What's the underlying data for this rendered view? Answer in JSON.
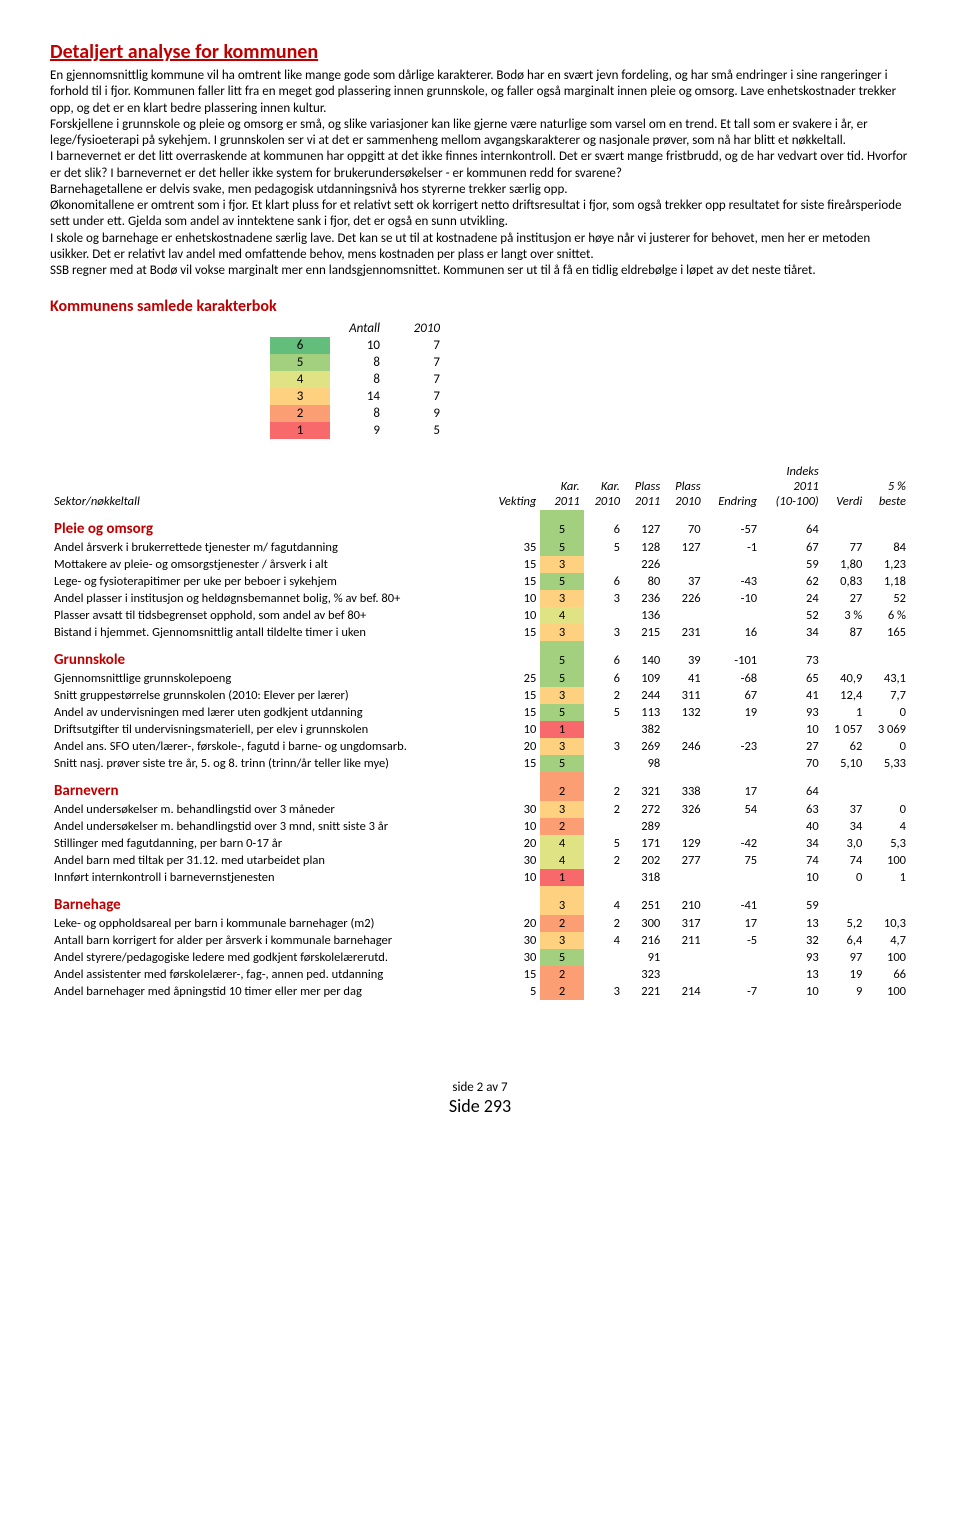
{
  "title": "Detaljert analyse for kommunen",
  "body": "En gjennomsnittlig kommune vil ha omtrent like mange gode som dårlige karakterer. Bodø har en svært jevn fordeling, og har små endringer i sine rangeringer i forhold til i fjor. Kommunen faller litt fra en meget god plassering innen grunnskole, og faller også marginalt innen pleie og omsorg. Lave enhetskostnader trekker opp, og det er en klart bedre plassering innen kultur.\nForskjellene i grunnskole og pleie og omsorg er små, og slike variasjoner kan like gjerne være naturlige som varsel om en trend. Et tall som er svakere i år, er lege/fysioeterapi på sykehjem. I grunnskolen ser vi at det er sammenheng mellom avgangskarakterer og nasjonale prøver, som nå har blitt et nøkkeltall.\nI barnevernet er det litt overraskende at kommunen har oppgitt at det ikke finnes internkontroll. Det er svært mange fristbrudd, og de har vedvart over tid. Hvorfor er det slik? I barnevernet er det heller ikke system for brukerundersøkelser - er kommunen redd for svarene?\nBarnehagetallene er delvis svake, men pedagogisk utdanningsnivå hos styrerne trekker særlig opp.\nØkonomitallene er omtrent som i fjor. Et klart pluss for et relativt sett ok korrigert netto driftsresultat i fjor, som også trekker opp resultatet for siste fireårsperiode sett under ett. Gjelda som andel av inntektene sank i fjor, det er også en sunn utvikling.\nI skole og barnehage er enhetskostnadene særlig lave. Det kan se ut til at kostnadene på institusjon er høye når vi justerer for behovet, men her er metoden usikker. Det er relativt lav andel med omfattende behov, mens kostnaden per plass er langt over snittet.\nSSB regner med at Bodø vil vokse marginalt mer enn landsgjennomsnittet. Kommunen ser ut til å få en tidlig eldrebølge i løpet av det neste tiåret.",
  "karakterbok": {
    "title": "Kommunens samlede karakterbok",
    "headers": [
      "",
      "Antall",
      "2010"
    ],
    "rows": [
      {
        "grade": 6,
        "color": "#63be7b",
        "antall": 10,
        "y2010": 7
      },
      {
        "grade": 5,
        "color": "#a2d07f",
        "antall": 8,
        "y2010": 7
      },
      {
        "grade": 4,
        "color": "#e0e383",
        "antall": 8,
        "y2010": 7
      },
      {
        "grade": 3,
        "color": "#fdd17f",
        "antall": 14,
        "y2010": 7
      },
      {
        "grade": 2,
        "color": "#fb9e74",
        "antall": 8,
        "y2010": 9
      },
      {
        "grade": 1,
        "color": "#f8696b",
        "antall": 9,
        "y2010": 5
      }
    ]
  },
  "colorScale": {
    "1": "#f8696b",
    "2": "#fb9e74",
    "3": "#fdd17f",
    "4": "#e0e383",
    "5": "#a2d07f",
    "6": "#63be7b"
  },
  "headers": {
    "sektor": "Sektor/nøkkeltall",
    "vekting": "Vekting",
    "kar2011": "Kar.\n2011",
    "kar2010": "Kar.\n2010",
    "plass2011": "Plass\n2011",
    "plass2010": "Plass\n2010",
    "endring": "Endring",
    "indeks": "Indeks\n2011\n(10-100)",
    "verdi": "Verdi",
    "beste": "5 %\nbeste"
  },
  "sectors": [
    {
      "name": "Pleie og omsorg",
      "kar2011": 5,
      "kar2010": 6,
      "plass2011": 127,
      "plass2010": 70,
      "endring": -57,
      "indeks": 64,
      "rows": [
        {
          "label": "Andel årsverk i brukerrettede tjenester m/ fagutdanning",
          "vekt": 35,
          "kar2011": 5,
          "kar2010": 5,
          "p11": 128,
          "p10": 127,
          "end": -1,
          "idx": 67,
          "verdi": "77",
          "beste": "84"
        },
        {
          "label": "Mottakere av pleie- og omsorgstjenester / årsverk i alt",
          "vekt": 15,
          "kar2011": 3,
          "kar2010": "",
          "p11": 226,
          "p10": "",
          "end": "",
          "idx": 59,
          "verdi": "1,80",
          "beste": "1,23"
        },
        {
          "label": "Lege- og fysioterapitimer per uke per beboer i sykehjem",
          "vekt": 15,
          "kar2011": 5,
          "kar2010": 6,
          "p11": 80,
          "p10": 37,
          "end": -43,
          "idx": 62,
          "verdi": "0,83",
          "beste": "1,18"
        },
        {
          "label": "Andel plasser i institusjon og heldøgnsbemannet bolig, % av bef. 80+",
          "vekt": 10,
          "kar2011": 3,
          "kar2010": 3,
          "p11": 236,
          "p10": 226,
          "end": -10,
          "idx": 24,
          "verdi": "27",
          "beste": "52"
        },
        {
          "label": "Plasser avsatt til tidsbegrenset opphold, som andel av bef 80+",
          "vekt": 10,
          "kar2011": 4,
          "kar2010": "",
          "p11": 136,
          "p10": "",
          "end": "",
          "idx": 52,
          "verdi": "3 %",
          "beste": "6 %"
        },
        {
          "label": "Bistand i hjemmet. Gjennomsnittlig antall tildelte timer i uken",
          "vekt": 15,
          "kar2011": 3,
          "kar2010": 3,
          "p11": 215,
          "p10": 231,
          "end": 16,
          "idx": 34,
          "verdi": "87",
          "beste": "165"
        }
      ]
    },
    {
      "name": "Grunnskole",
      "kar2011": 5,
      "kar2010": 6,
      "plass2011": 140,
      "plass2010": 39,
      "endring": -101,
      "indeks": 73,
      "rows": [
        {
          "label": "Gjennomsnittlige grunnskolepoeng",
          "vekt": 25,
          "kar2011": 5,
          "kar2010": 6,
          "p11": 109,
          "p10": 41,
          "end": -68,
          "idx": 65,
          "verdi": "40,9",
          "beste": "43,1"
        },
        {
          "label": "Snitt gruppestørrelse grunnskolen (2010: Elever per lærer)",
          "vekt": 15,
          "kar2011": 3,
          "kar2010": 2,
          "p11": 244,
          "p10": 311,
          "end": 67,
          "idx": 41,
          "verdi": "12,4",
          "beste": "7,7"
        },
        {
          "label": "Andel av undervisningen med lærer uten godkjent utdanning",
          "vekt": 15,
          "kar2011": 5,
          "kar2010": 5,
          "p11": 113,
          "p10": 132,
          "end": 19,
          "idx": 93,
          "verdi": "1",
          "beste": "0"
        },
        {
          "label": "Driftsutgifter til undervisningsmateriell, per elev i grunnskolen",
          "vekt": 10,
          "kar2011": 1,
          "kar2010": "",
          "p11": 382,
          "p10": "",
          "end": "",
          "idx": 10,
          "verdi": "1 057",
          "beste": "3 069"
        },
        {
          "label": "Andel ans. SFO uten/lærer-, førskole-, fagutd i barne- og ungdomsarb.",
          "vekt": 20,
          "kar2011": 3,
          "kar2010": 3,
          "p11": 269,
          "p10": 246,
          "end": -23,
          "idx": 27,
          "verdi": "62",
          "beste": "0"
        },
        {
          "label": "Snitt nasj. prøver siste tre år, 5. og 8. trinn (trinn/år teller like mye)",
          "vekt": 15,
          "kar2011": 5,
          "kar2010": "",
          "p11": 98,
          "p10": "",
          "end": "",
          "idx": 70,
          "verdi": "5,10",
          "beste": "5,33"
        }
      ]
    },
    {
      "name": "Barnevern",
      "kar2011": 2,
      "kar2010": 2,
      "plass2011": 321,
      "plass2010": 338,
      "endring": 17,
      "indeks": 64,
      "rows": [
        {
          "label": "Andel undersøkelser m. behandlingstid over 3 måneder",
          "vekt": 30,
          "kar2011": 3,
          "kar2010": 2,
          "p11": 272,
          "p10": 326,
          "end": 54,
          "idx": 63,
          "verdi": "37",
          "beste": "0"
        },
        {
          "label": "Andel undersøkelser m. behandlingstid over 3 mnd, snitt siste 3 år",
          "vekt": 10,
          "kar2011": 2,
          "kar2010": "",
          "p11": 289,
          "p10": "",
          "end": "",
          "idx": 40,
          "verdi": "34",
          "beste": "4"
        },
        {
          "label": "Stillinger med fagutdanning, per barn 0-17 år",
          "vekt": 20,
          "kar2011": 4,
          "kar2010": 5,
          "p11": 171,
          "p10": 129,
          "end": -42,
          "idx": 34,
          "verdi": "3,0",
          "beste": "5,3"
        },
        {
          "label": "Andel barn med tiltak per 31.12. med utarbeidet plan",
          "vekt": 30,
          "kar2011": 4,
          "kar2010": 2,
          "p11": 202,
          "p10": 277,
          "end": 75,
          "idx": 74,
          "verdi": "74",
          "beste": "100"
        },
        {
          "label": "Innført internkontroll i barnevernstjenesten",
          "vekt": 10,
          "kar2011": 1,
          "kar2010": "",
          "p11": 318,
          "p10": "",
          "end": "",
          "idx": 10,
          "verdi": "0",
          "beste": "1"
        }
      ]
    },
    {
      "name": "Barnehage",
      "kar2011": 3,
      "kar2010": 4,
      "plass2011": 251,
      "plass2010": 210,
      "endring": -41,
      "indeks": 59,
      "rows": [
        {
          "label": "Leke- og oppholdsareal per barn i kommunale barnehager (m2)",
          "vekt": 20,
          "kar2011": 2,
          "kar2010": 2,
          "p11": 300,
          "p10": 317,
          "end": 17,
          "idx": 13,
          "verdi": "5,2",
          "beste": "10,3"
        },
        {
          "label": "Antall barn korrigert for alder per årsverk i kommunale barnehager",
          "vekt": 30,
          "kar2011": 3,
          "kar2010": 4,
          "p11": 216,
          "p10": 211,
          "end": -5,
          "idx": 32,
          "verdi": "6,4",
          "beste": "4,7"
        },
        {
          "label": "Andel styrere/pedagogiske ledere med godkjent førskolelærerutd.",
          "vekt": 30,
          "kar2011": 5,
          "kar2010": "",
          "p11": 91,
          "p10": "",
          "end": "",
          "idx": 93,
          "verdi": "97",
          "beste": "100"
        },
        {
          "label": "Andel assistenter med førskolelærer-, fag-, annen ped. utdanning",
          "vekt": 15,
          "kar2011": 2,
          "kar2010": "",
          "p11": 323,
          "p10": "",
          "end": "",
          "idx": 13,
          "verdi": "19",
          "beste": "66"
        },
        {
          "label": "Andel barnehager med åpningstid 10 timer eller mer per dag",
          "vekt": 5,
          "kar2011": 2,
          "kar2010": 3,
          "p11": 221,
          "p10": 214,
          "end": -7,
          "idx": 10,
          "verdi": "9",
          "beste": "100"
        }
      ]
    }
  ],
  "footer": {
    "small": "side 2 av 7",
    "large": "Side 293"
  }
}
